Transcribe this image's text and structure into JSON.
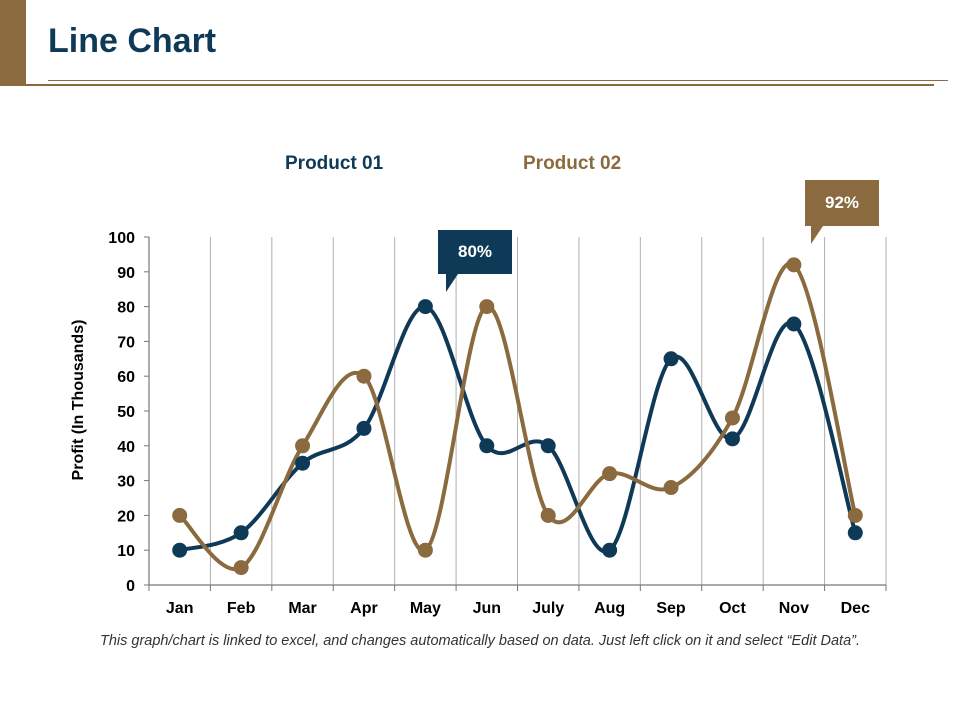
{
  "slide": {
    "title": "Line Chart",
    "footnote": "This graph/chart is linked to excel, and changes automatically based on data. Just left click on it and select “Edit Data”."
  },
  "colors": {
    "navy": "#0e3a57",
    "brown": "#8a6a3e",
    "gridline": "#b0b0b0",
    "axis": "#777777"
  },
  "callouts": [
    {
      "label": "80%",
      "series": "Product 01",
      "category": "May"
    },
    {
      "label": "92%",
      "series": "Product 02",
      "category": "Nov"
    }
  ],
  "chart_data": {
    "type": "line",
    "title": "",
    "xlabel": "",
    "ylabel": "Profit (In Thousands)",
    "categories": [
      "Jan",
      "Feb",
      "Mar",
      "Apr",
      "May",
      "Jun",
      "July",
      "Aug",
      "Sep",
      "Oct",
      "Nov",
      "Dec"
    ],
    "series": [
      {
        "name": "Product 01",
        "color": "#0e3a57",
        "values": [
          10,
          15,
          35,
          45,
          80,
          40,
          40,
          10,
          65,
          42,
          75,
          15
        ]
      },
      {
        "name": "Product 02",
        "color": "#8a6a3e",
        "values": [
          20,
          5,
          40,
          60,
          10,
          80,
          20,
          32,
          28,
          48,
          92,
          20
        ]
      }
    ],
    "ylim": [
      0,
      100
    ],
    "yticks": [
      0,
      10,
      20,
      30,
      40,
      50,
      60,
      70,
      80,
      90,
      100
    ],
    "grid": "vertical",
    "legend": "top",
    "smooth": true
  }
}
